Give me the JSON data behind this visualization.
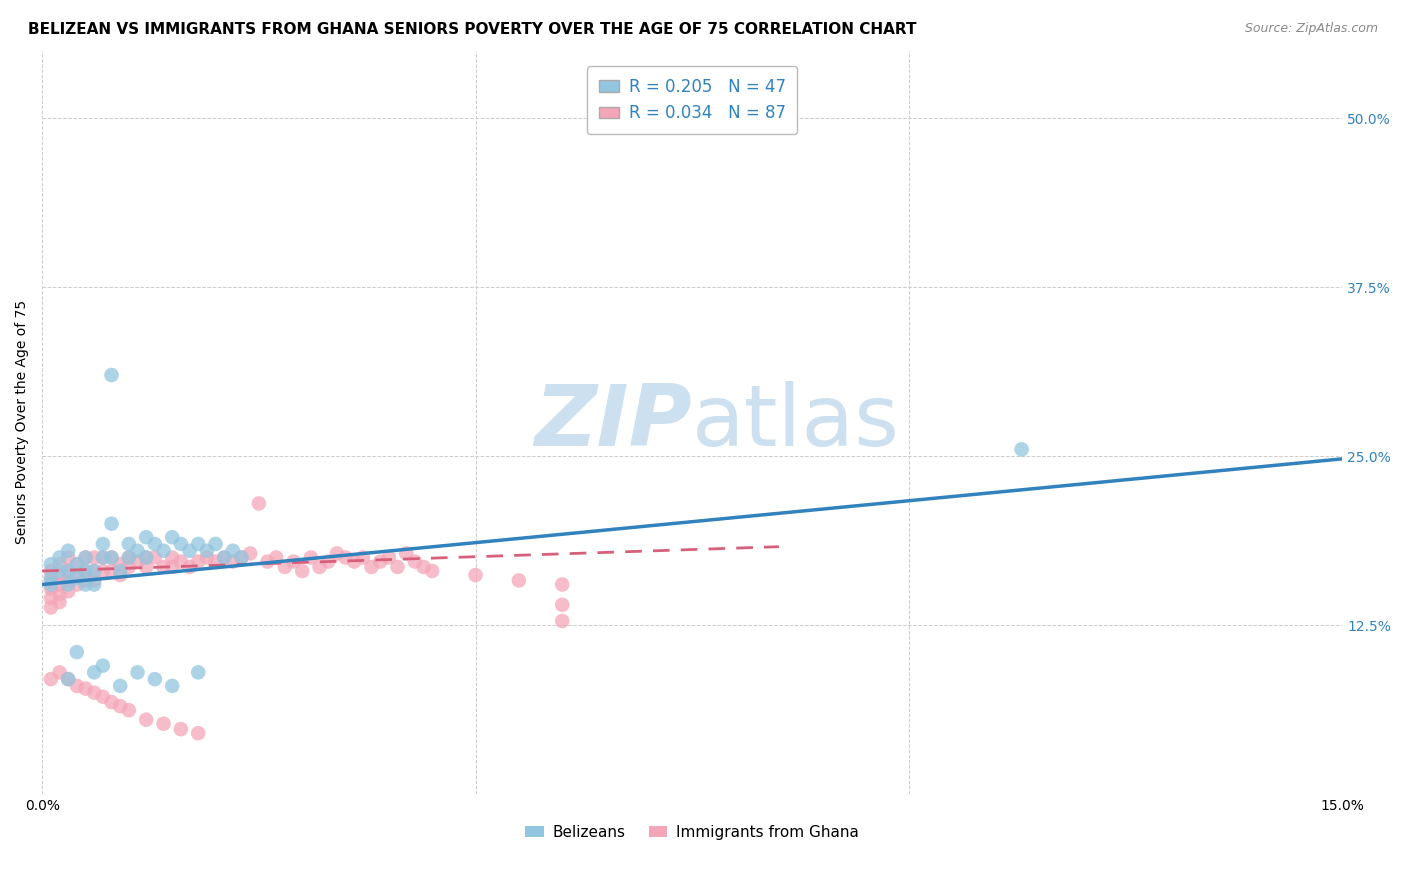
{
  "title": "BELIZEAN VS IMMIGRANTS FROM GHANA SENIORS POVERTY OVER THE AGE OF 75 CORRELATION CHART",
  "source": "Source: ZipAtlas.com",
  "ylabel": "Seniors Poverty Over the Age of 75",
  "xlim": [
    0.0,
    0.15
  ],
  "ylim": [
    0.0,
    0.55
  ],
  "xticks": [
    0.0,
    0.05,
    0.1,
    0.15
  ],
  "xticklabels": [
    "0.0%",
    "",
    "",
    "15.0%"
  ],
  "yticks": [
    0.0,
    0.125,
    0.25,
    0.375,
    0.5
  ],
  "yticklabels": [
    "",
    "12.5%",
    "25.0%",
    "37.5%",
    "50.0%"
  ],
  "belizean_R": 0.205,
  "belizean_N": 47,
  "ghana_R": 0.034,
  "ghana_N": 87,
  "blue_color": "#92c5de",
  "blue_line_color": "#3182bd",
  "pink_color": "#f4a6b8",
  "pink_line_color": "#d6607a",
  "background_color": "#ffffff",
  "grid_color": "#cccccc",
  "watermark_color": "#cce0f0",
  "legend_label_1": "Belizeans",
  "legend_label_2": "Immigrants from Ghana",
  "blue_line_x0": 0.0,
  "blue_line_y0": 0.155,
  "blue_line_x1": 0.15,
  "blue_line_y1": 0.248,
  "pink_line_x0": 0.0,
  "pink_line_y0": 0.165,
  "pink_line_x1": 0.085,
  "pink_line_y1": 0.183,
  "belizean_x": [
    0.001,
    0.001,
    0.001,
    0.002,
    0.002,
    0.003,
    0.003,
    0.003,
    0.004,
    0.004,
    0.005,
    0.005,
    0.005,
    0.006,
    0.006,
    0.007,
    0.007,
    0.008,
    0.008,
    0.009,
    0.01,
    0.01,
    0.011,
    0.012,
    0.012,
    0.013,
    0.014,
    0.015,
    0.016,
    0.017,
    0.018,
    0.019,
    0.02,
    0.021,
    0.022,
    0.023,
    0.003,
    0.004,
    0.006,
    0.007,
    0.009,
    0.011,
    0.013,
    0.015,
    0.018,
    0.113,
    0.008
  ],
  "belizean_y": [
    0.17,
    0.16,
    0.155,
    0.175,
    0.165,
    0.18,
    0.165,
    0.155,
    0.17,
    0.16,
    0.175,
    0.165,
    0.155,
    0.165,
    0.155,
    0.185,
    0.175,
    0.2,
    0.175,
    0.165,
    0.185,
    0.175,
    0.18,
    0.19,
    0.175,
    0.185,
    0.18,
    0.19,
    0.185,
    0.18,
    0.185,
    0.18,
    0.185,
    0.175,
    0.18,
    0.175,
    0.085,
    0.105,
    0.09,
    0.095,
    0.08,
    0.09,
    0.085,
    0.08,
    0.09,
    0.255,
    0.31
  ],
  "ghana_x": [
    0.001,
    0.001,
    0.001,
    0.001,
    0.001,
    0.002,
    0.002,
    0.002,
    0.002,
    0.002,
    0.003,
    0.003,
    0.003,
    0.003,
    0.004,
    0.004,
    0.004,
    0.005,
    0.005,
    0.005,
    0.006,
    0.006,
    0.006,
    0.007,
    0.007,
    0.008,
    0.008,
    0.009,
    0.009,
    0.01,
    0.01,
    0.011,
    0.012,
    0.012,
    0.013,
    0.014,
    0.015,
    0.015,
    0.016,
    0.017,
    0.018,
    0.019,
    0.02,
    0.021,
    0.022,
    0.023,
    0.024,
    0.025,
    0.026,
    0.027,
    0.028,
    0.029,
    0.03,
    0.031,
    0.032,
    0.033,
    0.034,
    0.035,
    0.036,
    0.037,
    0.038,
    0.039,
    0.04,
    0.041,
    0.042,
    0.043,
    0.044,
    0.045,
    0.05,
    0.055,
    0.06,
    0.001,
    0.002,
    0.003,
    0.004,
    0.005,
    0.006,
    0.007,
    0.008,
    0.009,
    0.01,
    0.012,
    0.014,
    0.016,
    0.018,
    0.06,
    0.06
  ],
  "ghana_y": [
    0.165,
    0.158,
    0.152,
    0.145,
    0.138,
    0.17,
    0.162,
    0.155,
    0.148,
    0.142,
    0.175,
    0.165,
    0.158,
    0.15,
    0.17,
    0.162,
    0.155,
    0.175,
    0.165,
    0.158,
    0.175,
    0.165,
    0.158,
    0.175,
    0.165,
    0.175,
    0.165,
    0.17,
    0.162,
    0.175,
    0.168,
    0.172,
    0.175,
    0.168,
    0.175,
    0.168,
    0.175,
    0.168,
    0.172,
    0.168,
    0.172,
    0.175,
    0.172,
    0.175,
    0.172,
    0.175,
    0.178,
    0.215,
    0.172,
    0.175,
    0.168,
    0.172,
    0.165,
    0.175,
    0.168,
    0.172,
    0.178,
    0.175,
    0.172,
    0.175,
    0.168,
    0.172,
    0.175,
    0.168,
    0.178,
    0.172,
    0.168,
    0.165,
    0.162,
    0.158,
    0.155,
    0.085,
    0.09,
    0.085,
    0.08,
    0.078,
    0.075,
    0.072,
    0.068,
    0.065,
    0.062,
    0.055,
    0.052,
    0.048,
    0.045,
    0.14,
    0.128
  ],
  "title_fontsize": 11,
  "axis_fontsize": 10,
  "tick_fontsize": 10,
  "source_fontsize": 9
}
